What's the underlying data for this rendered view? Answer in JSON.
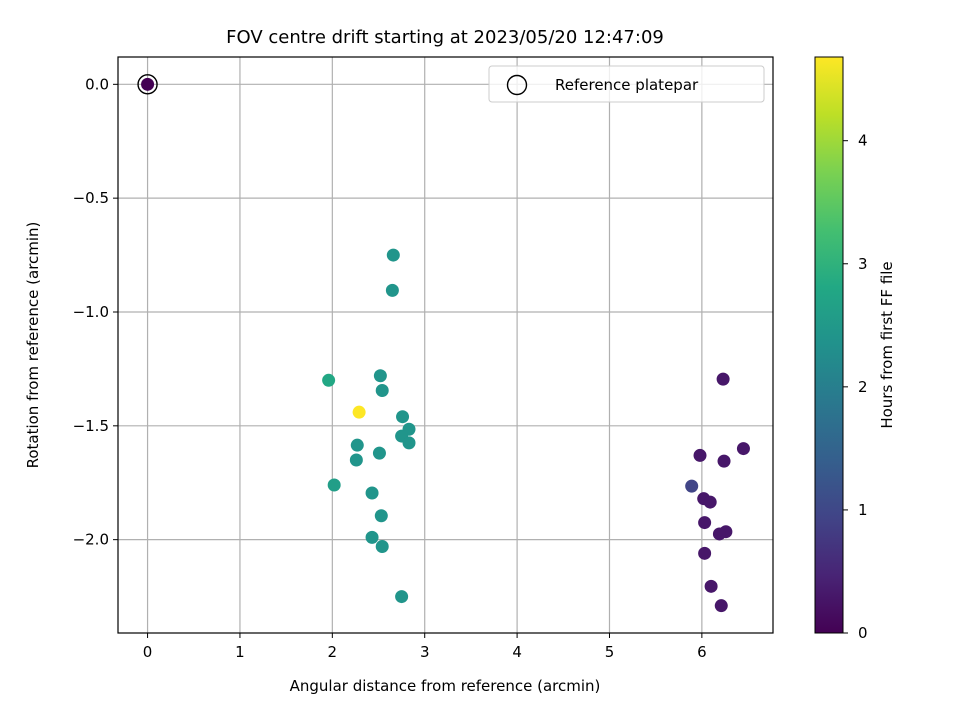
{
  "chart_data": {
    "type": "scatter",
    "title": "FOV centre drift starting at 2023/05/20 12:47:09",
    "xlabel": "Angular distance from reference (arcmin)",
    "ylabel": "Rotation from reference (arcmin)",
    "xlim": [
      -0.32,
      6.77
    ],
    "ylim": [
      -2.41,
      0.12
    ],
    "xticks": [
      0,
      1,
      2,
      3,
      4,
      5,
      6
    ],
    "yticks": [
      0.0,
      -0.5,
      -1.0,
      -1.5,
      -2.0
    ],
    "ytick_labels": [
      "0.0",
      "−0.5",
      "−1.0",
      "−1.5",
      "−2.0"
    ],
    "grid": true,
    "legend": {
      "position": "top-right",
      "entries": [
        "Reference platepar"
      ]
    },
    "colorbar": {
      "label": "Hours from first FF file",
      "colormap": "viridis",
      "range": [
        0,
        4.68
      ],
      "ticks": [
        0,
        1,
        2,
        3,
        4
      ]
    },
    "reference_point": {
      "x": 0,
      "y": 0,
      "color": "#440154"
    },
    "points": [
      {
        "x": 2.66,
        "y": -0.75,
        "c": 2.42
      },
      {
        "x": 2.65,
        "y": -0.905,
        "c": 2.42
      },
      {
        "x": 1.96,
        "y": -1.3,
        "c": 2.78
      },
      {
        "x": 2.52,
        "y": -1.28,
        "c": 2.42
      },
      {
        "x": 2.54,
        "y": -1.345,
        "c": 2.42
      },
      {
        "x": 2.29,
        "y": -1.44,
        "c": 4.68
      },
      {
        "x": 2.76,
        "y": -1.46,
        "c": 2.42
      },
      {
        "x": 2.83,
        "y": -1.515,
        "c": 2.42
      },
      {
        "x": 2.75,
        "y": -1.545,
        "c": 2.42
      },
      {
        "x": 2.83,
        "y": -1.575,
        "c": 2.42
      },
      {
        "x": 2.27,
        "y": -1.585,
        "c": 2.42
      },
      {
        "x": 2.51,
        "y": -1.62,
        "c": 2.42
      },
      {
        "x": 2.26,
        "y": -1.65,
        "c": 2.42
      },
      {
        "x": 2.02,
        "y": -1.76,
        "c": 2.6
      },
      {
        "x": 2.43,
        "y": -1.795,
        "c": 2.42
      },
      {
        "x": 2.53,
        "y": -1.895,
        "c": 2.42
      },
      {
        "x": 2.43,
        "y": -1.99,
        "c": 2.42
      },
      {
        "x": 2.54,
        "y": -2.03,
        "c": 2.42
      },
      {
        "x": 2.75,
        "y": -2.25,
        "c": 2.42
      },
      {
        "x": 6.23,
        "y": -1.295,
        "c": 0.3
      },
      {
        "x": 6.45,
        "y": -1.6,
        "c": 0.3
      },
      {
        "x": 5.98,
        "y": -1.63,
        "c": 0.3
      },
      {
        "x": 6.24,
        "y": -1.655,
        "c": 0.3
      },
      {
        "x": 5.89,
        "y": -1.765,
        "c": 0.95
      },
      {
        "x": 6.02,
        "y": -1.82,
        "c": 0.3
      },
      {
        "x": 6.09,
        "y": -1.835,
        "c": 0.3
      },
      {
        "x": 6.03,
        "y": -1.925,
        "c": 0.3
      },
      {
        "x": 6.26,
        "y": -1.965,
        "c": 0.3
      },
      {
        "x": 6.19,
        "y": -1.975,
        "c": 0.3
      },
      {
        "x": 6.03,
        "y": -2.06,
        "c": 0.3
      },
      {
        "x": 6.1,
        "y": -2.205,
        "c": 0.3
      },
      {
        "x": 6.21,
        "y": -2.29,
        "c": 0.3
      }
    ]
  }
}
